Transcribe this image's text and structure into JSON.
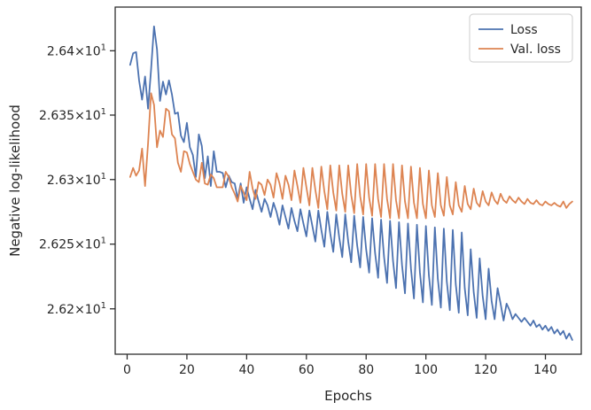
{
  "chart_data": {
    "type": "line",
    "xlabel": "Epochs",
    "ylabel": "Negative log-likelihood",
    "xlim": [
      -4,
      152
    ],
    "ylim": [
      26.165,
      26.434
    ],
    "y_scale": "log",
    "grid": false,
    "legend_position": "top-right",
    "x_ticks": [
      0,
      20,
      40,
      60,
      80,
      100,
      120,
      140
    ],
    "y_ticks": [
      {
        "value": 26.2,
        "mantissa": "2.62",
        "base": "10",
        "exp": "1"
      },
      {
        "value": 26.25,
        "mantissa": "2.625",
        "base": "10",
        "exp": "1"
      },
      {
        "value": 26.3,
        "mantissa": "2.63",
        "base": "10",
        "exp": "1"
      },
      {
        "value": 26.35,
        "mantissa": "2.635",
        "base": "10",
        "exp": "1"
      },
      {
        "value": 26.4,
        "mantissa": "2.64",
        "base": "10",
        "exp": "1"
      }
    ],
    "series": [
      {
        "name": "Loss",
        "color": "#4c72b0",
        "x_start": 1,
        "values": [
          26.389,
          26.398,
          26.399,
          26.377,
          26.362,
          26.38,
          26.355,
          26.385,
          26.419,
          26.401,
          26.361,
          26.376,
          26.366,
          26.377,
          26.366,
          26.351,
          26.352,
          26.334,
          26.329,
          26.344,
          26.325,
          26.319,
          26.302,
          26.335,
          26.326,
          26.301,
          26.318,
          26.295,
          26.322,
          26.306,
          26.306,
          26.305,
          26.294,
          26.303,
          26.298,
          26.297,
          26.285,
          26.297,
          26.282,
          26.294,
          26.285,
          26.277,
          26.292,
          26.283,
          26.275,
          26.285,
          26.28,
          26.271,
          26.282,
          26.275,
          26.265,
          26.28,
          26.271,
          26.262,
          26.278,
          26.268,
          26.26,
          26.277,
          26.266,
          26.256,
          26.276,
          26.264,
          26.252,
          26.276,
          26.261,
          26.248,
          26.275,
          26.258,
          26.244,
          26.273,
          26.255,
          26.24,
          26.273,
          26.252,
          26.236,
          26.272,
          26.249,
          26.232,
          26.271,
          26.246,
          26.228,
          26.27,
          26.243,
          26.224,
          26.269,
          26.24,
          26.22,
          26.268,
          26.237,
          26.216,
          26.267,
          26.234,
          26.212,
          26.266,
          26.231,
          26.208,
          26.265,
          26.228,
          26.205,
          26.264,
          26.226,
          26.203,
          26.263,
          26.223,
          26.201,
          26.262,
          26.221,
          26.199,
          26.261,
          26.219,
          26.197,
          26.259,
          26.216,
          26.195,
          26.246,
          26.213,
          26.193,
          26.239,
          26.21,
          26.192,
          26.231,
          26.206,
          26.192,
          26.216,
          26.204,
          26.191,
          26.204,
          26.199,
          26.192,
          26.196,
          26.193,
          26.19,
          26.193,
          26.19,
          26.187,
          26.191,
          26.186,
          26.188,
          26.184,
          26.187,
          26.183,
          26.186,
          26.181,
          26.184,
          26.18,
          26.183,
          26.177,
          26.181,
          26.176
        ]
      },
      {
        "name": "Val. loss",
        "color": "#dd8452",
        "x_start": 1,
        "values": [
          26.302,
          26.309,
          26.303,
          26.307,
          26.324,
          26.295,
          26.328,
          26.367,
          26.358,
          26.325,
          26.338,
          26.333,
          26.355,
          26.353,
          26.335,
          26.332,
          26.313,
          26.306,
          26.322,
          26.321,
          26.312,
          26.306,
          26.3,
          26.298,
          26.313,
          26.297,
          26.296,
          26.304,
          26.301,
          26.294,
          26.294,
          26.294,
          26.306,
          26.302,
          26.294,
          26.289,
          26.283,
          26.295,
          26.29,
          26.284,
          26.306,
          26.293,
          26.285,
          26.298,
          26.296,
          26.288,
          26.3,
          26.296,
          26.286,
          26.305,
          26.297,
          26.285,
          26.303,
          26.296,
          26.284,
          26.307,
          26.295,
          26.282,
          26.309,
          26.294,
          26.28,
          26.309,
          26.292,
          26.278,
          26.31,
          26.291,
          26.277,
          26.311,
          26.29,
          26.276,
          26.311,
          26.289,
          26.275,
          26.311,
          26.288,
          26.274,
          26.312,
          26.287,
          26.273,
          26.312,
          26.286,
          26.272,
          26.312,
          26.285,
          26.271,
          26.312,
          26.285,
          26.27,
          26.312,
          26.284,
          26.27,
          26.311,
          26.283,
          26.27,
          26.31,
          26.282,
          26.27,
          26.309,
          26.281,
          26.27,
          26.307,
          26.28,
          26.271,
          26.305,
          26.28,
          26.272,
          26.302,
          26.28,
          26.273,
          26.298,
          26.28,
          26.275,
          26.295,
          26.281,
          26.277,
          26.293,
          26.282,
          26.279,
          26.291,
          26.283,
          26.28,
          26.29,
          26.284,
          26.281,
          26.289,
          26.284,
          26.282,
          26.287,
          26.284,
          26.282,
          26.286,
          26.283,
          26.281,
          26.285,
          26.282,
          26.281,
          26.284,
          26.281,
          26.28,
          26.283,
          26.281,
          26.28,
          26.282,
          26.28,
          26.279,
          26.283,
          26.278,
          26.281,
          26.283
        ]
      }
    ]
  }
}
